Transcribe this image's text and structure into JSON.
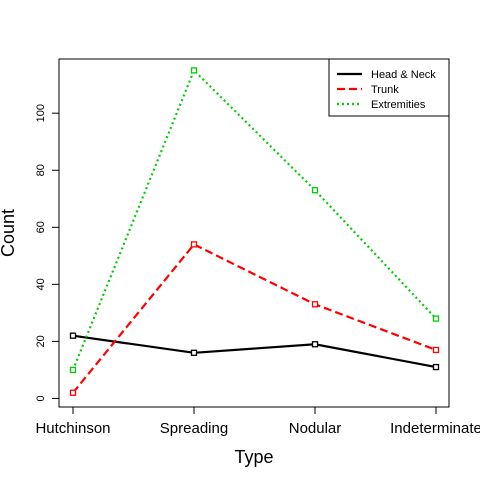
{
  "chart_data": {
    "type": "line",
    "title": "",
    "xlabel": "Type",
    "ylabel": "Count",
    "categories": [
      "Hutchinson",
      "Spreading",
      "Nodular",
      "Indeterminate"
    ],
    "ylim": [
      -3,
      119
    ],
    "yticks": [
      0,
      20,
      40,
      60,
      80,
      100
    ],
    "grid": false,
    "legend_position": "top-right",
    "series": [
      {
        "name": "Head & Neck",
        "values": [
          22,
          16,
          19,
          11
        ],
        "color": "#000000",
        "dash": "solid"
      },
      {
        "name": "Trunk",
        "values": [
          2,
          54,
          33,
          17
        ],
        "color": "#ff0000",
        "dash": "dashed"
      },
      {
        "name": "Extremities",
        "values": [
          10,
          115,
          73,
          28
        ],
        "color": "#00cd00",
        "dash": "dotted"
      }
    ]
  }
}
